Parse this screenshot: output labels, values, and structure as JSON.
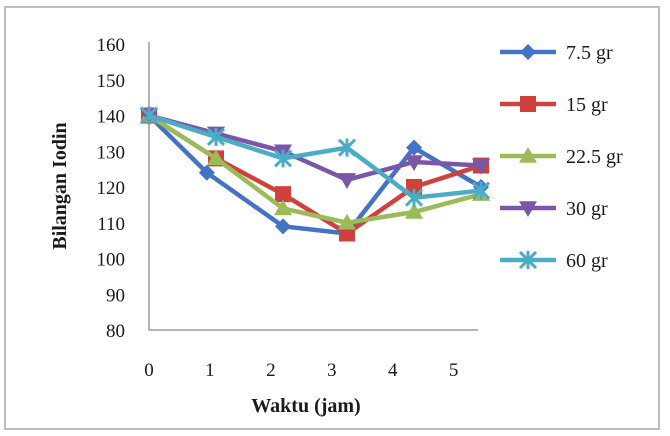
{
  "chart_data": {
    "type": "line",
    "title": "",
    "xlabel": "Waktu (jam)",
    "ylabel": "Bilangan Iodin",
    "xlim": [
      0,
      5.4
    ],
    "ylim": [
      80,
      160
    ],
    "x_ticks": [
      0,
      1,
      2,
      3,
      4,
      5
    ],
    "y_ticks": [
      80,
      90,
      100,
      110,
      120,
      130,
      140,
      150,
      160
    ],
    "grid": false,
    "legend_position": "right",
    "series": [
      {
        "name": "7.5 gr",
        "color": "#4472c4",
        "marker": "diamond",
        "x": [
          0,
          0.95,
          2.2,
          3.25,
          4.35,
          5.45
        ],
        "y": [
          140,
          124,
          109,
          107,
          131,
          120
        ]
      },
      {
        "name": "15 gr",
        "color": "#d0403d",
        "marker": "square",
        "x": [
          0,
          1.1,
          2.2,
          3.25,
          4.35,
          5.45
        ],
        "y": [
          140,
          128,
          118,
          107,
          120,
          126
        ]
      },
      {
        "name": "22.5 gr",
        "color": "#9bbb59",
        "marker": "triangle",
        "x": [
          0,
          1.1,
          2.2,
          3.25,
          4.35,
          5.45
        ],
        "y": [
          140,
          128,
          114,
          110,
          113,
          118
        ]
      },
      {
        "name": "30 gr",
        "color": "#7a55a8",
        "marker": "triangle-down",
        "x": [
          0,
          1.1,
          2.2,
          3.25,
          4.35,
          5.45
        ],
        "y": [
          140,
          135,
          130,
          122,
          127,
          126
        ]
      },
      {
        "name": "60 gr",
        "color": "#4bacc6",
        "marker": "star",
        "x": [
          0,
          1.1,
          2.2,
          3.25,
          4.35,
          5.45
        ],
        "y": [
          140,
          134,
          128,
          131,
          117,
          119
        ]
      }
    ]
  }
}
